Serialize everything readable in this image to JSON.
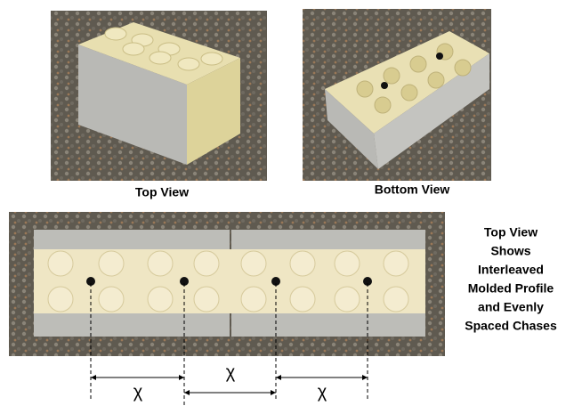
{
  "captions": {
    "top_view": "Top View",
    "bottom_view": "Bottom View"
  },
  "description": [
    "Top View",
    "Shows",
    "Interleaved",
    "Molded Profile",
    "and Evenly",
    "Spaced Chases"
  ],
  "dimensions": [
    "χ",
    "χ",
    "χ"
  ]
}
